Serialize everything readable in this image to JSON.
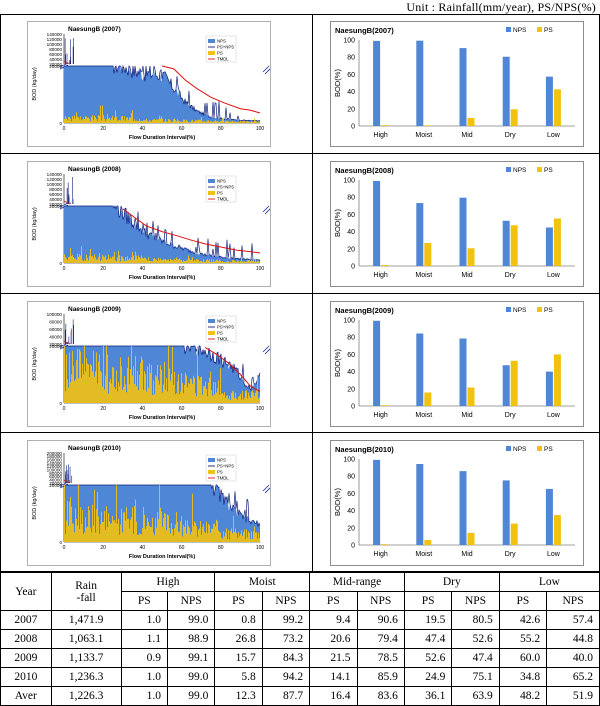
{
  "unit_note": "Unit : Rainfall(mm/year),  PS/NPS(%)",
  "colors": {
    "nps": "#4f86d6",
    "ps": "#f2c20e",
    "ps_nps_line": "#10207a",
    "tmdl": "#e01010"
  },
  "chart_data": [
    {
      "type": "area",
      "title": "NaesungB (2007)",
      "xlabel": "Flow Duration Interval(%)",
      "ylabel": "BOD (kg/day)",
      "xticks": [
        0,
        20,
        40,
        60,
        80,
        100
      ],
      "yticks_upper": [
        "140000",
        "120000",
        "100000",
        "80000",
        "60000",
        "40000",
        "20000"
      ],
      "yticks_lower": [
        "20000",
        "0"
      ],
      "legend": [
        "NPS",
        "PS+NPS",
        "PS",
        "TMDL"
      ],
      "legend_position": "top-right",
      "curve": {
        "nps_x": [
          0,
          3,
          4,
          24,
          30,
          40,
          50,
          56,
          62,
          68,
          75,
          82,
          90,
          100
        ],
        "nps_y": [
          20000,
          20000,
          20000,
          20000,
          19500,
          17000,
          16500,
          12000,
          7000,
          4000,
          2000,
          1400,
          1000,
          700
        ],
        "ps_level": [
          1800,
          1600,
          1000,
          800,
          500
        ],
        "tmdl_x": [
          50,
          56,
          62,
          68,
          75,
          82,
          90,
          95,
          100
        ],
        "tmdl_y": [
          24000,
          19000,
          15000,
          12000,
          9000,
          7000,
          5000,
          4500,
          3500
        ],
        "spike_max": 140000
      }
    },
    {
      "type": "bar",
      "title": "NaesungB(2007)",
      "categories": [
        "High",
        "Moist",
        "Mid",
        "Dry",
        "Low"
      ],
      "series": [
        {
          "name": "NPS",
          "values": [
            99.0,
            99.2,
            90.6,
            80.5,
            57.4
          ]
        },
        {
          "name": "PS",
          "values": [
            1.0,
            0.8,
            9.4,
            19.5,
            42.6
          ]
        }
      ],
      "ylabel": "BOD(%)",
      "ylim": [
        0,
        100
      ],
      "yticks": [
        0,
        20,
        40,
        60,
        80,
        100
      ],
      "legend_position": "top-right"
    },
    {
      "type": "area",
      "title": "NaesungB (2008)",
      "xlabel": "Flow Duration Interval(%)",
      "ylabel": "BOD (kg/day)",
      "xticks": [
        0,
        20,
        40,
        60,
        80,
        100
      ],
      "yticks_upper": [
        "140000",
        "120000",
        "100000",
        "80000",
        "60000",
        "40000",
        "20000"
      ],
      "yticks_lower": [
        "20000",
        "0"
      ],
      "legend": [
        "NPS",
        "PS+NPS",
        "PS",
        "TMDL"
      ],
      "legend_position": "top-right",
      "curve": {
        "nps_x": [
          0,
          3,
          4,
          25,
          28,
          35,
          42,
          50,
          58,
          65,
          72,
          80,
          88,
          100
        ],
        "nps_y": [
          20000,
          20000,
          20000,
          20000,
          18500,
          14000,
          10000,
          7500,
          5500,
          4000,
          2800,
          2000,
          1500,
          1000
        ],
        "ps_level": [
          2200,
          1800,
          1300,
          900,
          700
        ],
        "tmdl_x": [
          30,
          35,
          42,
          50,
          58,
          65,
          72,
          80,
          88,
          95,
          100
        ],
        "tmdl_y": [
          19000,
          16500,
          13000,
          11000,
          9500,
          8000,
          6700,
          5600,
          4500,
          4000,
          3500
        ],
        "spike_max": 140000
      }
    },
    {
      "type": "bar",
      "title": "NaesungB(2008)",
      "categories": [
        "High",
        "Moist",
        "Mid",
        "Dry",
        "Low"
      ],
      "series": [
        {
          "name": "NPS",
          "values": [
            98.9,
            73.2,
            79.4,
            52.6,
            44.8
          ]
        },
        {
          "name": "PS",
          "values": [
            1.1,
            26.8,
            20.6,
            47.4,
            55.2
          ]
        }
      ],
      "ylabel": "BOD(%)",
      "ylim": [
        0,
        100
      ],
      "yticks": [
        0,
        20,
        40,
        60,
        80,
        100
      ],
      "legend_position": "top-right"
    },
    {
      "type": "area",
      "title": "NaesungB (2009)",
      "xlabel": "Flow Duration Interval(%)",
      "ylabel": "BOD (kg/day)",
      "xticks": [
        0,
        20,
        40,
        60,
        80,
        100
      ],
      "yticks_upper": [
        "100000",
        "80000",
        "60000",
        "40000",
        "20000"
      ],
      "yticks_lower": [
        "20000",
        "0"
      ],
      "legend": [
        "NPS",
        "PS+NPS",
        "PS",
        "TMDL"
      ],
      "legend_position": "top-right",
      "curve": {
        "nps_x": [
          0,
          4,
          60,
          68,
          75,
          82,
          88,
          92,
          95,
          100
        ],
        "nps_y": [
          20000,
          20000,
          20000,
          19000,
          17000,
          14000,
          11000,
          7000,
          5000,
          9000
        ],
        "ps_level": [
          12000,
          11000,
          9000,
          7000,
          3000
        ],
        "tmdl_x": [
          72,
          78,
          84,
          90,
          95,
          100
        ],
        "tmdl_y": [
          19500,
          17000,
          14000,
          10000,
          6000,
          4000
        ],
        "spike_max": 100000
      }
    },
    {
      "type": "bar",
      "title": "NaesungB(2009)",
      "categories": [
        "High",
        "Moist",
        "Mid",
        "Dry",
        "Low"
      ],
      "series": [
        {
          "name": "NPS",
          "values": [
            99.1,
            84.3,
            78.5,
            47.4,
            40.0
          ]
        },
        {
          "name": "PS",
          "values": [
            0.9,
            15.7,
            21.5,
            52.6,
            60.0
          ]
        }
      ],
      "ylabel": "BOD(%)",
      "ylim": [
        0,
        100
      ],
      "yticks": [
        0,
        20,
        40,
        60,
        80,
        100
      ],
      "legend_position": "top-right"
    },
    {
      "type": "area",
      "title": "NaesungB (2010)",
      "xlabel": "Flow Duration Interval(%)",
      "ylabel": "BOD (kg/day)",
      "xticks": [
        0,
        20,
        40,
        60,
        80,
        100
      ],
      "yticks_upper": [
        "200000",
        "180000",
        "160000",
        "140000",
        "120000",
        "100000",
        "80000",
        "60000",
        "40000",
        "20000"
      ],
      "yticks_lower": [
        "20000",
        "0"
      ],
      "legend": [
        "NPS",
        "PS+NPS",
        "PS",
        "TMDL"
      ],
      "legend_position": "top-right",
      "curve": {
        "nps_x": [
          0,
          4,
          75,
          80,
          85,
          90,
          95,
          100
        ],
        "nps_y": [
          20000,
          20000,
          20000,
          16000,
          12000,
          9000,
          7000,
          6000
        ],
        "ps_level": [
          9000,
          8000,
          7000,
          5000,
          3000
        ],
        "tmdl_x": [],
        "tmdl_y": [],
        "spike_max": 200000
      }
    },
    {
      "type": "bar",
      "title": "NaesungB(2010)",
      "categories": [
        "High",
        "Moist",
        "Mid",
        "Dry",
        "Low"
      ],
      "series": [
        {
          "name": "NPS",
          "values": [
            99.0,
            94.2,
            85.9,
            75.1,
            65.2
          ]
        },
        {
          "name": "PS",
          "values": [
            1.0,
            5.8,
            14.1,
            24.9,
            34.8
          ]
        }
      ],
      "ylabel": "BOD(%)",
      "ylim": [
        0,
        100
      ],
      "yticks": [
        0,
        20,
        40,
        60,
        80,
        100
      ],
      "legend_position": "top-right"
    }
  ],
  "table": {
    "header1": {
      "year": "Year",
      "rain": "Rain",
      "rain2": "-fall",
      "groups": [
        "High",
        "Moist",
        "Mid-range",
        "Dry",
        "Low"
      ]
    },
    "sub": [
      "PS",
      "NPS"
    ],
    "rows": [
      {
        "year": "2007",
        "rain": "1,471.9",
        "vals": [
          "1.0",
          "99.0",
          "0.8",
          "99.2",
          "9.4",
          "90.6",
          "19.5",
          "80.5",
          "42.6",
          "57.4"
        ]
      },
      {
        "year": "2008",
        "rain": "1,063.1",
        "vals": [
          "1.1",
          "98.9",
          "26.8",
          "73.2",
          "20.6",
          "79.4",
          "47.4",
          "52.6",
          "55.2",
          "44.8"
        ]
      },
      {
        "year": "2009",
        "rain": "1,133.7",
        "vals": [
          "0.9",
          "99.1",
          "15.7",
          "84.3",
          "21.5",
          "78.5",
          "52.6",
          "47.4",
          "60.0",
          "40.0"
        ]
      },
      {
        "year": "2010",
        "rain": "1,236.3",
        "vals": [
          "1.0",
          "99.0",
          "5.8",
          "94.2",
          "14.1",
          "85.9",
          "24.9",
          "75.1",
          "34.8",
          "65.2"
        ]
      },
      {
        "year": "Aver",
        "rain": "1,226.3",
        "vals": [
          "1.0",
          "99.0",
          "12.3",
          "87.7",
          "16.4",
          "83.6",
          "36.1",
          "63.9",
          "48.2",
          "51.9"
        ]
      }
    ]
  }
}
